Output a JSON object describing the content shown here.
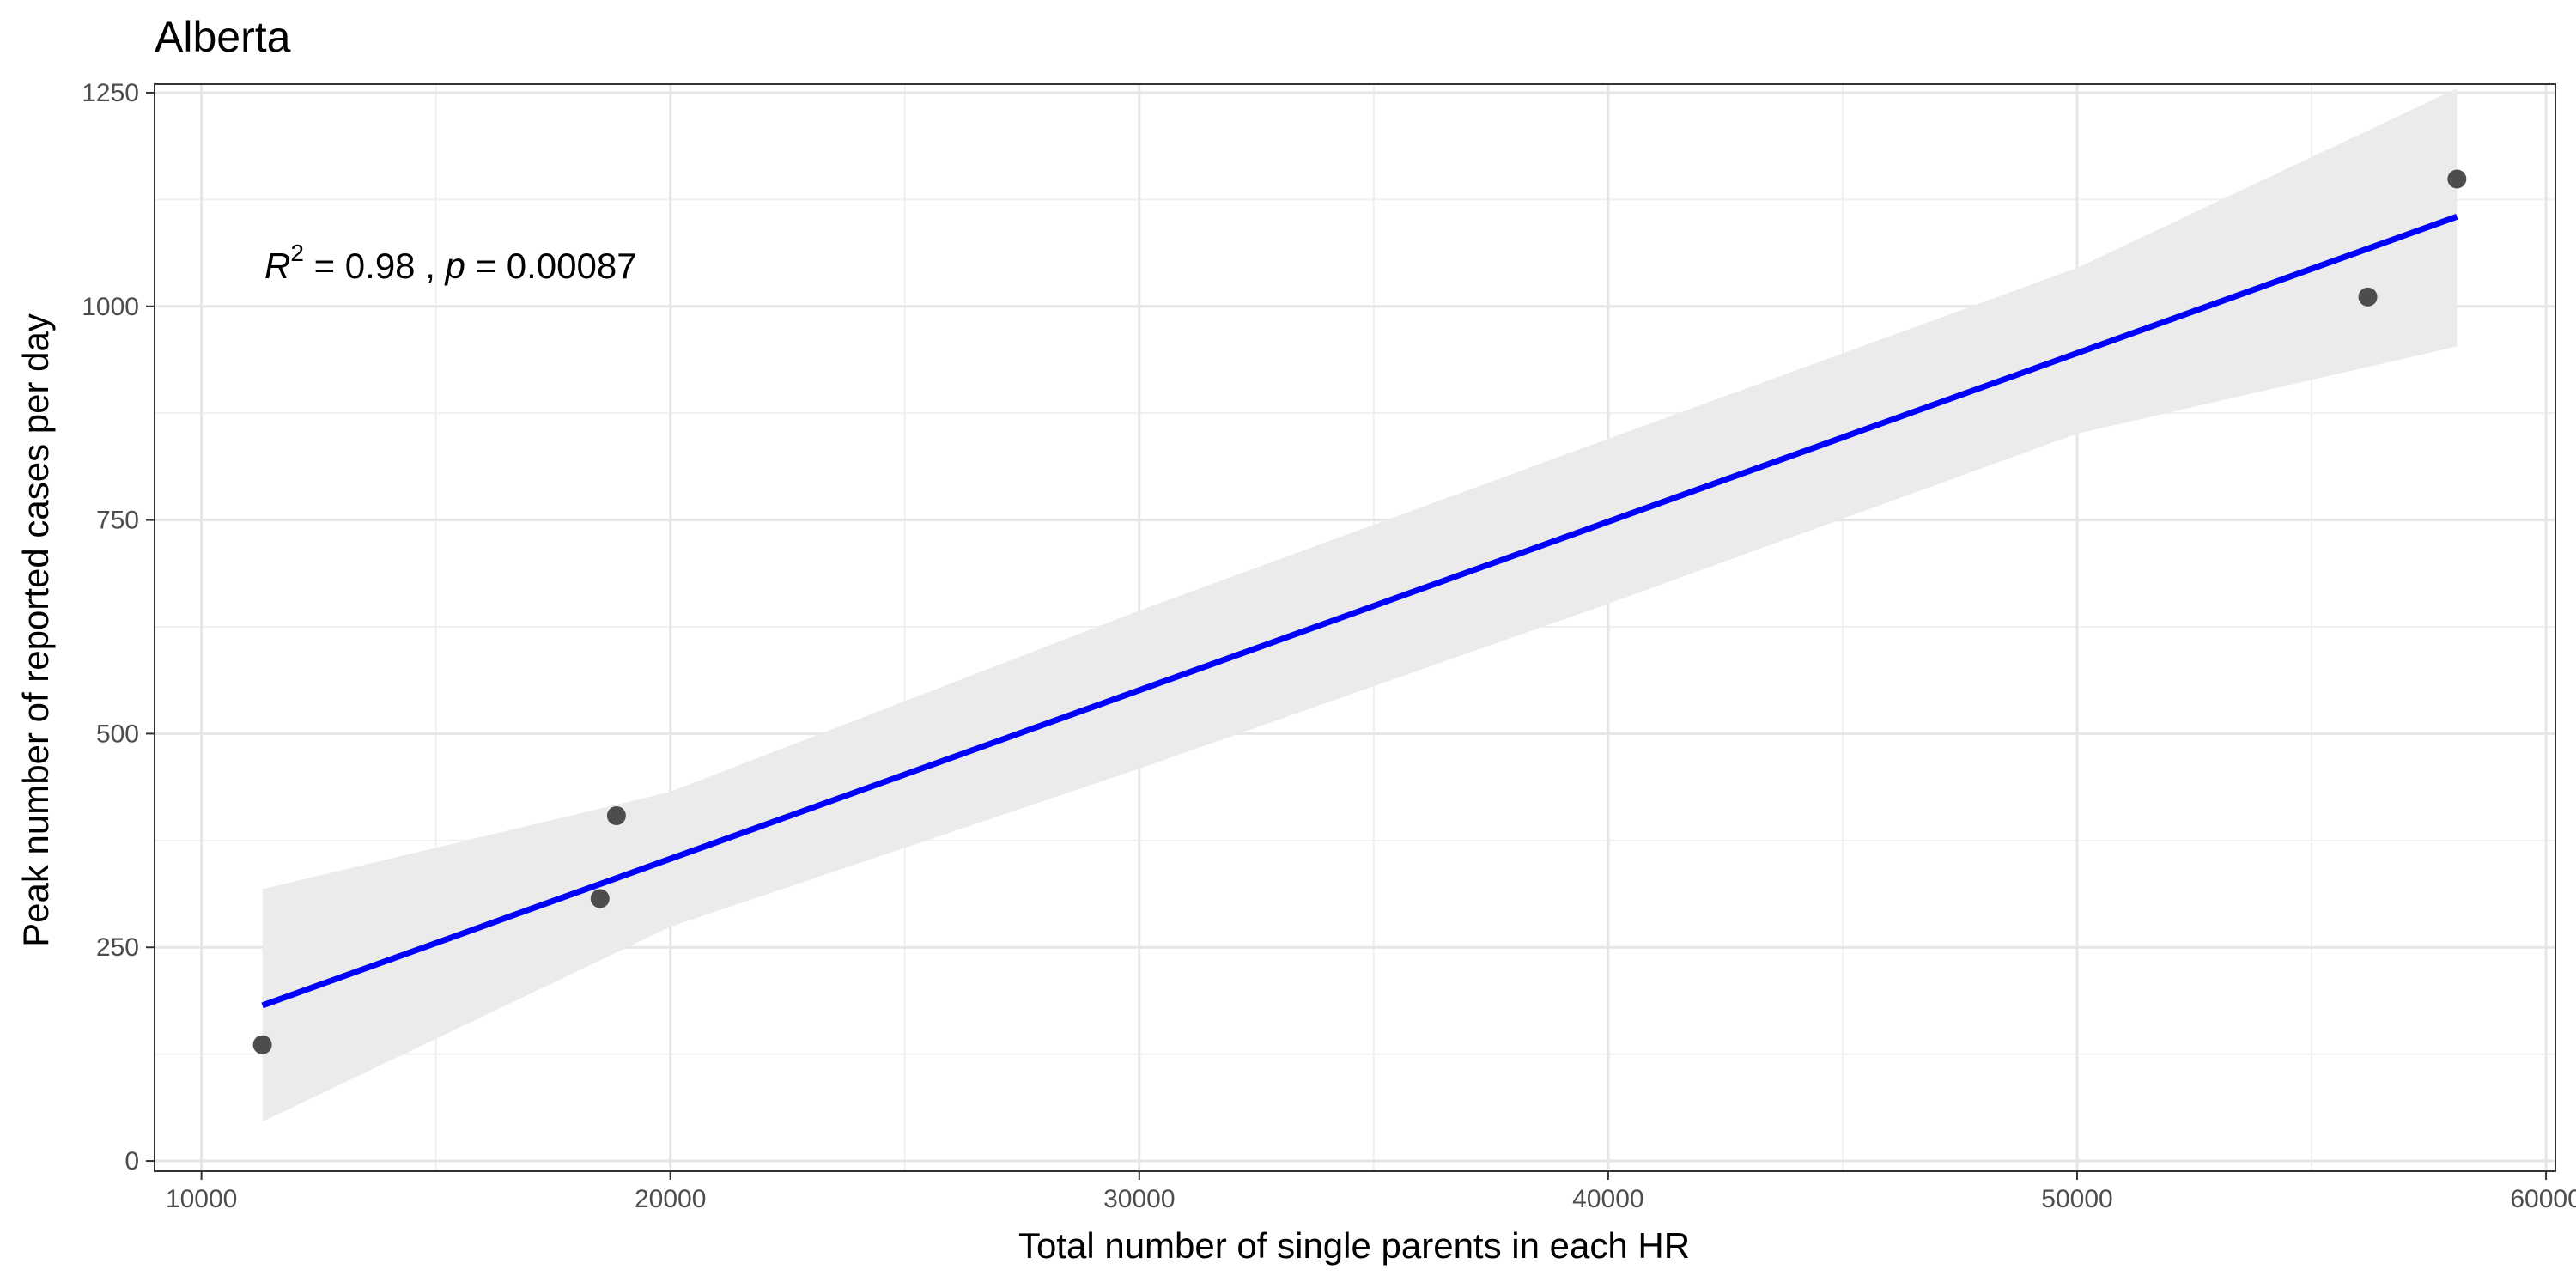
{
  "chart_data": {
    "type": "scatter",
    "title": "Alberta",
    "xlabel": "Total number of single parents in each HR",
    "ylabel": "Peak number of reported cases per day",
    "xlim": [
      9000,
      60200
    ],
    "ylim": [
      -12,
      1260
    ],
    "x_ticks": [
      10000,
      20000,
      30000,
      40000,
      50000,
      60000
    ],
    "y_ticks": [
      0,
      250,
      500,
      750,
      1000,
      1250
    ],
    "x_minor_ticks": [
      15000,
      25000,
      35000,
      45000,
      55000
    ],
    "y_minor_ticks": [
      125,
      375,
      625,
      875,
      1125
    ],
    "grid": true,
    "points": [
      {
        "x": 11300,
        "y": 136
      },
      {
        "x": 18500,
        "y": 307
      },
      {
        "x": 18850,
        "y": 404
      },
      {
        "x": 56200,
        "y": 1011
      },
      {
        "x": 58100,
        "y": 1149
      }
    ],
    "fit_line": {
      "x": [
        11300,
        58100
      ],
      "y": [
        182,
        1105
      ],
      "color": "#0000ff"
    },
    "confidence_band": {
      "x": [
        11300,
        20000,
        30000,
        40000,
        50000,
        58100
      ],
      "upper": [
        318,
        432,
        644,
        845,
        1045,
        1255
      ],
      "lower": [
        46,
        274,
        459,
        652,
        851,
        953
      ],
      "color": "#ebebeb"
    },
    "annotation": {
      "r_symbol": "R",
      "r_exponent": "2",
      "r_value": " = 0.98 , ",
      "p_symbol": "p",
      "p_value": " = 0.00087"
    },
    "point_color": "#4d4d4d"
  }
}
